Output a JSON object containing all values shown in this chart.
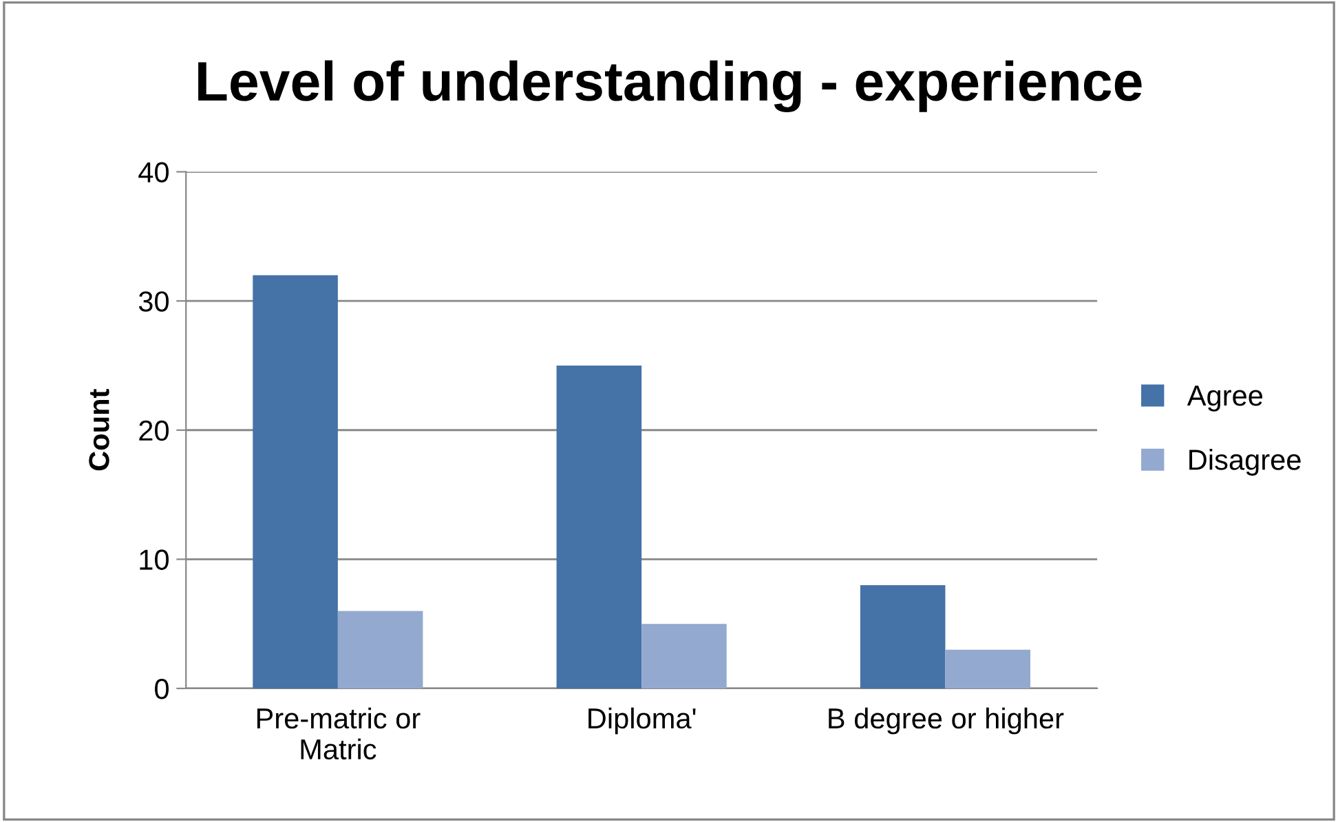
{
  "chart_data": {
    "type": "bar",
    "title": "Level of understanding - experience",
    "ylabel": "Count",
    "categories": [
      "Pre-matric or\nMatric",
      "Diploma'",
      "B degree or higher"
    ],
    "series": [
      {
        "name": "Agree",
        "color": "#4572a7",
        "values": [
          32,
          25,
          8
        ]
      },
      {
        "name": "Disagree",
        "color": "#93a9cf",
        "values": [
          6,
          5,
          3
        ]
      }
    ],
    "ylim": [
      0,
      40
    ],
    "yticks": [
      0,
      10,
      20,
      30,
      40
    ],
    "grid": "y",
    "legend": "right"
  }
}
